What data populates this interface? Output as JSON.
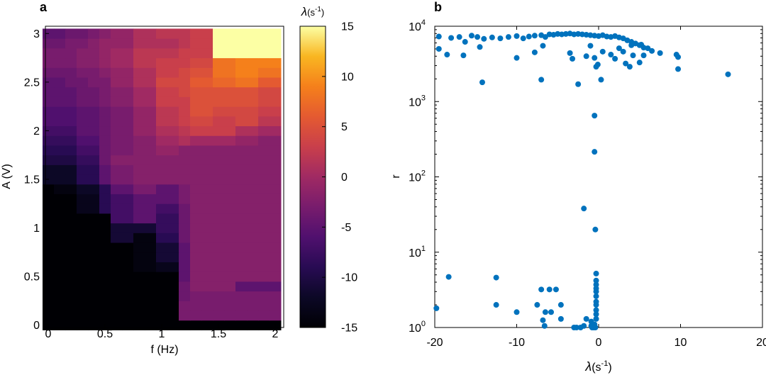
{
  "chart_data": [
    {
      "panel": "a",
      "type": "heatmap",
      "xlabel": "f (Hz)",
      "ylabel": "A (V)",
      "xlim": [
        -0.025,
        2.075
      ],
      "ylim": [
        -0.025,
        3.075
      ],
      "x_ticks": [
        "0",
        "0.5",
        "1",
        "1.5",
        "2"
      ],
      "y_ticks": [
        "0",
        "0.5",
        "1",
        "1.5",
        "2",
        "2.5",
        "3"
      ],
      "colorbar": {
        "label_main": "λ",
        "label_unit": "(s",
        "label_exp": "-1",
        "label_close": ")",
        "range": [
          -15,
          15
        ],
        "ticks": [
          "15",
          "10",
          "5",
          "0",
          "-5",
          "-10",
          "-15"
        ]
      },
      "x_values": [
        0,
        0.1,
        0.2,
        0.3,
        0.4,
        0.5,
        0.6,
        0.7,
        0.8,
        0.9,
        1.0,
        1.1,
        1.2,
        1.3,
        1.4,
        1.5,
        1.6,
        1.7,
        1.8,
        1.9,
        2.0
      ],
      "y_values": [
        0,
        0.1,
        0.2,
        0.3,
        0.4,
        0.5,
        0.6,
        0.7,
        0.8,
        0.9,
        1.0,
        1.1,
        1.2,
        1.3,
        1.4,
        1.5,
        1.6,
        1.7,
        1.8,
        1.9,
        2.0,
        2.1,
        2.2,
        2.3,
        2.4,
        2.5,
        2.6,
        2.7,
        2.8,
        2.9,
        3.0
      ],
      "values_note": "rows ordered from A=0 (bottom) to A=3.0 (top); columns f=0..2.0",
      "values": [
        [
          -15,
          -15,
          -15,
          -15,
          -15,
          -15,
          -15,
          -15,
          -15,
          -15,
          -15,
          -15,
          -15,
          -15,
          -15,
          -15,
          -15,
          -15,
          -15,
          -15,
          -15
        ],
        [
          -15,
          -15,
          -15,
          -15,
          -15,
          -15,
          -15,
          -15,
          -15,
          -15,
          -15,
          -15,
          -3,
          -3,
          -3,
          -3,
          -3,
          -3,
          -3,
          -3,
          -3
        ],
        [
          -15,
          -15,
          -15,
          -15,
          -15,
          -15,
          -15,
          -15,
          -15,
          -15,
          -15,
          -15,
          -3,
          -3,
          -3,
          -3,
          -3,
          -3,
          -3,
          -3,
          -3
        ],
        [
          -15,
          -15,
          -15,
          -15,
          -15,
          -15,
          -15,
          -15,
          -15,
          -15,
          -15,
          -15,
          -4,
          -3,
          -3,
          -3,
          -3,
          -3,
          -3,
          -3,
          -3
        ],
        [
          -15,
          -15,
          -15,
          -15,
          -15,
          -15,
          -15,
          -15,
          -15,
          -15,
          -15,
          -15,
          -4,
          -2,
          -2,
          -2,
          -2,
          -5,
          -5,
          -5,
          -5
        ],
        [
          -15,
          -15,
          -15,
          -15,
          -15,
          -15,
          -15,
          -15,
          -15,
          -15,
          -15,
          -15,
          -5,
          -2,
          -2,
          -2,
          -2,
          -2,
          -2,
          -2,
          -2
        ],
        [
          -15,
          -15,
          -15,
          -15,
          -15,
          -15,
          -15,
          -15,
          -14,
          -14,
          -13,
          -13,
          -5,
          -2,
          -2,
          -2,
          -2,
          -2,
          -2,
          -2,
          -2
        ],
        [
          -15,
          -15,
          -15,
          -15,
          -15,
          -15,
          -15,
          -15,
          -14,
          -14,
          -11,
          -11,
          -5,
          -2,
          -2,
          -2,
          -2,
          -2,
          -2,
          -2,
          -2
        ],
        [
          -15,
          -15,
          -15,
          -15,
          -15,
          -15,
          -15,
          -15,
          -14,
          -14,
          -11,
          -11,
          -5,
          -2,
          -2,
          -2,
          -2,
          -2,
          -2,
          -2,
          -2
        ],
        [
          -15,
          -15,
          -15,
          -15,
          -15,
          -15,
          -11,
          -11,
          -14,
          -14,
          -9,
          -9,
          -4,
          -2,
          -2,
          -2,
          -2,
          -2,
          -2,
          -2,
          -2
        ],
        [
          -15,
          -15,
          -15,
          -15,
          -15,
          -15,
          -11,
          -11,
          -11,
          -11,
          -8,
          -8,
          -4,
          -2,
          -2,
          -2,
          -2,
          -2,
          -2,
          -2,
          -2
        ],
        [
          -15,
          -15,
          -15,
          -15,
          -15,
          -15,
          -7,
          -7,
          -5,
          -5,
          -8,
          -8,
          -4,
          -2,
          -2,
          -2,
          -2,
          -2,
          -2,
          -2,
          -2
        ],
        [
          -15,
          -15,
          -15,
          -13,
          -13,
          -9,
          -7,
          -7,
          -5,
          -5,
          -7,
          -7,
          -4,
          -2,
          -2,
          -2,
          -2,
          -2,
          -2,
          -2,
          -2
        ],
        [
          -15,
          -15,
          -15,
          -13,
          -13,
          -9,
          -7,
          -7,
          -5,
          -5,
          -5,
          -5,
          -3,
          -2,
          -2,
          -2,
          -2,
          -2,
          -2,
          -2,
          -2
        ],
        [
          -15,
          -14,
          -14,
          -12,
          -12,
          -9,
          -5,
          -5,
          -3,
          -3,
          -5,
          -5,
          -3,
          -2,
          -2,
          -2,
          -2,
          -2,
          -2,
          -2,
          -2
        ],
        [
          -12,
          -12,
          -12,
          -9,
          -9,
          -5,
          -3,
          -3,
          -2,
          -2,
          -2,
          -2,
          -2,
          -2,
          -2,
          -2,
          -2,
          -2,
          -2,
          -2,
          -2
        ],
        [
          -12,
          -12,
          -12,
          -9,
          -9,
          -5,
          -3,
          -3,
          -2,
          -2,
          -2,
          -2,
          -2,
          -2,
          -2,
          -2,
          -2,
          -2,
          -2,
          -2,
          -2
        ],
        [
          -10,
          -10,
          -10,
          -8,
          -8,
          -4,
          -2,
          -2,
          -2,
          -2,
          -2,
          -2,
          -2,
          -2,
          -2,
          -2,
          -2,
          -2,
          -2,
          -2,
          -2
        ],
        [
          -9,
          -9,
          -9,
          -7,
          -7,
          -4,
          -3,
          -3,
          -2,
          -2,
          -1,
          -1,
          -2,
          -2,
          -2,
          -2,
          -2,
          -2,
          -2,
          -2,
          -2
        ],
        [
          -8,
          -8,
          -8,
          -6,
          -6,
          -4,
          -3,
          -3,
          -2,
          -2,
          0,
          0,
          1,
          0,
          0,
          0,
          0,
          -1,
          -1,
          -2,
          -2
        ],
        [
          -7,
          -7,
          -7,
          -5,
          -5,
          -4,
          -3,
          -3,
          -1,
          -1,
          1,
          1,
          2,
          3,
          3,
          3,
          3,
          1,
          1,
          0,
          0
        ],
        [
          -6,
          -6,
          -6,
          -5,
          -5,
          -4,
          -3,
          -3,
          -1,
          -1,
          2,
          2,
          3,
          4,
          4,
          3,
          3,
          4,
          4,
          2,
          2
        ],
        [
          -6,
          -6,
          -6,
          -5,
          -5,
          -4,
          -3,
          -3,
          -1,
          -1,
          2,
          2,
          3,
          5,
          5,
          4,
          4,
          4,
          4,
          3,
          3
        ],
        [
          -5,
          -5,
          -5,
          -4,
          -4,
          -3,
          -2,
          -2,
          0,
          0,
          3,
          3,
          3,
          5,
          5,
          5,
          5,
          5,
          5,
          4,
          4
        ],
        [
          -5,
          -5,
          -5,
          -4,
          -4,
          -3,
          -2,
          -2,
          0,
          0,
          3,
          3,
          4,
          5,
          5,
          5,
          5,
          5,
          5,
          4,
          4
        ],
        [
          -5,
          -5,
          -4,
          -4,
          -3,
          -3,
          -1,
          -1,
          1,
          1,
          4,
          4,
          4,
          6,
          6,
          7,
          7,
          8,
          8,
          6,
          6
        ],
        [
          -4,
          -4,
          -4,
          -3,
          -3,
          -2,
          -1,
          -1,
          1,
          1,
          3,
          3,
          4,
          5,
          5,
          8,
          8,
          9,
          9,
          8,
          8
        ],
        [
          -3,
          -3,
          -3,
          -2,
          -2,
          -1,
          0,
          0,
          2,
          2,
          3,
          3,
          3,
          4,
          4,
          8,
          8,
          9,
          9,
          9,
          9
        ],
        [
          -3,
          -3,
          -3,
          -2,
          -2,
          -1,
          0,
          0,
          2,
          2,
          2,
          2,
          3,
          3,
          3,
          15,
          15,
          15,
          15,
          15,
          15
        ],
        [
          -4,
          -4,
          -3,
          -3,
          -2,
          -1,
          -1,
          -1,
          1,
          1,
          1,
          1,
          2,
          3,
          3,
          15,
          15,
          15,
          15,
          15,
          15
        ],
        [
          -5,
          -5,
          -4,
          -4,
          -3,
          -2,
          -1,
          -1,
          1,
          1,
          2,
          2,
          2,
          3,
          3,
          15,
          15,
          15,
          15,
          15,
          15
        ]
      ]
    },
    {
      "panel": "b",
      "type": "scatter",
      "xlabel_main": "λ",
      "xlabel_unit": "(s",
      "xlabel_exp": "-1",
      "xlabel_close": ")",
      "ylabel": "r",
      "xlim": [
        -20,
        20
      ],
      "ylim": [
        1,
        10000
      ],
      "yscale": "log",
      "x_ticks": [
        "-20",
        "-10",
        "0",
        "10",
        "20"
      ],
      "y_ticks": [
        {
          "base": "10",
          "exp": "0"
        },
        {
          "base": "10",
          "exp": "1"
        },
        {
          "base": "10",
          "exp": "2"
        },
        {
          "base": "10",
          "exp": "3"
        },
        {
          "base": "10",
          "exp": "4"
        }
      ],
      "color": "#0072bd",
      "points": [
        [
          -19.8,
          1.8
        ],
        [
          -18.3,
          4.7
        ],
        [
          -12.5,
          4.6
        ],
        [
          -12.5,
          2.0
        ],
        [
          -10.0,
          1.6
        ],
        [
          -7.0,
          3.2
        ],
        [
          -6.0,
          3.2
        ],
        [
          -5.2,
          3.2
        ],
        [
          -7.5,
          2.0
        ],
        [
          -6.5,
          1.6
        ],
        [
          -5.8,
          1.6
        ],
        [
          -6.8,
          1.25
        ],
        [
          -6.6,
          1.05
        ],
        [
          -4.6,
          2.0
        ],
        [
          -4.6,
          1.3
        ],
        [
          -3.0,
          1.0
        ],
        [
          -2.7,
          1.0
        ],
        [
          -2.2,
          1.0
        ],
        [
          -1.8,
          1.05
        ],
        [
          -1.5,
          1.3
        ],
        [
          -0.9,
          1.2
        ],
        [
          -0.9,
          1.05
        ],
        [
          -0.8,
          1.0
        ],
        [
          -0.6,
          1.0
        ],
        [
          -0.5,
          1.1
        ],
        [
          -0.4,
          1.0
        ],
        [
          -0.3,
          1.3
        ],
        [
          -0.3,
          1.5
        ],
        [
          -0.3,
          1.7
        ],
        [
          -0.3,
          2.0
        ],
        [
          -0.3,
          2.2
        ],
        [
          -0.3,
          2.6
        ],
        [
          -0.3,
          3.0
        ],
        [
          -0.3,
          3.3
        ],
        [
          -0.3,
          3.7
        ],
        [
          -0.3,
          4.2
        ],
        [
          -0.3,
          5.2
        ],
        [
          -0.4,
          20
        ],
        [
          -1.8,
          38
        ],
        [
          -0.5,
          215
        ],
        [
          -0.5,
          650
        ],
        [
          -19.5,
          5000
        ],
        [
          -18.5,
          4200
        ],
        [
          -16.5,
          4100
        ],
        [
          -14.2,
          1800
        ],
        [
          -7.0,
          1950
        ],
        [
          -2.5,
          1700
        ],
        [
          0.3,
          1950
        ],
        [
          15.8,
          2300
        ],
        [
          9.7,
          2700
        ],
        [
          -19.5,
          7300
        ],
        [
          -18.0,
          7000
        ],
        [
          -17.0,
          7200
        ],
        [
          -16.3,
          6200
        ],
        [
          -15.5,
          7500
        ],
        [
          -14.8,
          7200
        ],
        [
          -14.0,
          6800
        ],
        [
          -13.0,
          7100
        ],
        [
          -12.0,
          6900
        ],
        [
          -11.0,
          7200
        ],
        [
          -10.0,
          7400
        ],
        [
          -9.2,
          6900
        ],
        [
          -8.5,
          7300
        ],
        [
          -7.8,
          7500
        ],
        [
          -7.0,
          7600
        ],
        [
          -6.5,
          7200
        ],
        [
          -6.0,
          7800
        ],
        [
          -5.5,
          7700
        ],
        [
          -5.0,
          7900
        ],
        [
          -4.5,
          7800
        ],
        [
          -4.0,
          7900
        ],
        [
          -3.5,
          8000
        ],
        [
          -3.0,
          7800
        ],
        [
          -2.5,
          7900
        ],
        [
          -2.0,
          7800
        ],
        [
          -1.5,
          7700
        ],
        [
          -1.0,
          7600
        ],
        [
          -0.5,
          7500
        ],
        [
          0.0,
          7400
        ],
        [
          0.5,
          7600
        ],
        [
          1.0,
          7300
        ],
        [
          1.5,
          7200
        ],
        [
          2.0,
          7400
        ],
        [
          2.5,
          7100
        ],
        [
          3.0,
          6900
        ],
        [
          3.5,
          6500
        ],
        [
          4.0,
          6200
        ],
        [
          4.5,
          5900
        ],
        [
          5.0,
          5600
        ],
        [
          5.5,
          5200
        ],
        [
          6.0,
          5100
        ],
        [
          -14.5,
          5300
        ],
        [
          -10.0,
          3800
        ],
        [
          -6.8,
          5500
        ],
        [
          -7.8,
          4500
        ],
        [
          -3.5,
          4400
        ],
        [
          -3.2,
          3700
        ],
        [
          -1.5,
          4000
        ],
        [
          -1.0,
          5500
        ],
        [
          -0.5,
          3800
        ],
        [
          -0.3,
          2900
        ],
        [
          -0.1,
          3100
        ],
        [
          0.5,
          4600
        ],
        [
          1.5,
          4200
        ],
        [
          2.0,
          3700
        ],
        [
          2.5,
          5100
        ],
        [
          3.0,
          4600
        ],
        [
          3.3,
          3200
        ],
        [
          3.8,
          2900
        ],
        [
          4.2,
          4100
        ],
        [
          5.0,
          3300
        ],
        [
          5.5,
          4100
        ],
        [
          6.5,
          4700
        ],
        [
          7.5,
          4400
        ],
        [
          9.5,
          4200
        ],
        [
          9.7,
          3900
        ],
        [
          4.0,
          5600
        ],
        [
          5.2,
          5700
        ]
      ]
    }
  ]
}
